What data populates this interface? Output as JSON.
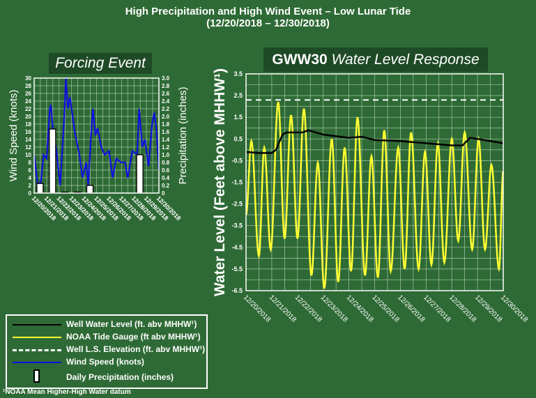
{
  "header": {
    "title_line1": "High Precipitation and High Wind Event – Low Lunar Tide",
    "title_line2": "(12/20/2018 – 12/30/2018)"
  },
  "left_panel": {
    "title": "Forcing Event"
  },
  "right_panel": {
    "title_bold": "GWW30",
    "title_italic": "Water Level Response"
  },
  "legend": {
    "items": [
      {
        "label": "Well Water Level (ft. abv MHHW¹)",
        "color": "#000000",
        "style": "solid"
      },
      {
        "label": "NOAA  Tide Gauge (ft abv MHHW¹)",
        "color": "#ffff33",
        "style": "solid"
      },
      {
        "label": "Well L.S. Elevation (ft. abv MHHW¹)",
        "color": "#ffffff",
        "style": "dashed"
      },
      {
        "label": "Wind  Speed (knots)",
        "color": "#1010e0",
        "style": "solid"
      },
      {
        "label": "Daily Precipitation (inches)",
        "color": "#ffffff",
        "style": "bar"
      }
    ]
  },
  "footnote": "¹NOAA  Mean Higher-High  Water datum",
  "colors": {
    "background": "#2e6a35",
    "title_box": "#1f4a26",
    "tide": "#ffff33",
    "well": "#000000",
    "wind": "#1010e0",
    "precip": "#ffffff"
  },
  "chart_data": [
    {
      "type": "line+bar",
      "title": "Forcing Event",
      "ylabel": "Wind Speed  (knots)",
      "y2label": "Precipitation  (inches)",
      "ylim": [
        0,
        30
      ],
      "y2lim": [
        0,
        3.0
      ],
      "yticks": [
        "0",
        "2",
        "4",
        "6",
        "8",
        "10",
        "12",
        "14",
        "16",
        "18",
        "20",
        "22",
        "24",
        "26",
        "28",
        "30"
      ],
      "y2ticks": [
        "0",
        "0.2",
        "0.4",
        "0.6",
        "0.8",
        "1.0",
        "1.2",
        "1.4",
        "1.6",
        "1.8",
        "2.0",
        "2.2",
        "2.4",
        "2.6",
        "2.8",
        "3.0"
      ],
      "xticks": [
        "12/20/2018",
        "12/21/2018",
        "12/22/2018",
        "12/23/2018",
        "12/24/2018",
        "12/25/2018",
        "12/26/2018",
        "12/27/2018",
        "12/28/2018",
        "12/29/2018",
        "12/30/2018"
      ],
      "grid": true,
      "wind_series": {
        "name": "Wind Speed (knots)",
        "points": [
          [
            "12/20 00",
            10
          ],
          [
            "12/20 07",
            2
          ],
          [
            "12/20 13",
            3
          ],
          [
            "12/20 18",
            10
          ],
          [
            "12/21 00",
            9
          ],
          [
            "12/21 06",
            22
          ],
          [
            "12/21 08",
            23
          ],
          [
            "12/21 12",
            17
          ],
          [
            "12/21 18",
            12
          ],
          [
            "12/22 02",
            2
          ],
          [
            "12/22 10",
            20
          ],
          [
            "12/22 13",
            30
          ],
          [
            "12/22 17",
            22
          ],
          [
            "12/22 21",
            25
          ],
          [
            "12/23 01",
            21
          ],
          [
            "12/23 06",
            16
          ],
          [
            "12/23 15",
            10
          ],
          [
            "12/23 21",
            4
          ],
          [
            "12/24 04",
            8
          ],
          [
            "12/24 08",
            2
          ],
          [
            "12/24 13",
            14
          ],
          [
            "12/24 17",
            22
          ],
          [
            "12/24 22",
            15
          ],
          [
            "12/25 02",
            17
          ],
          [
            "12/25 09",
            12
          ],
          [
            "12/25 16",
            10
          ],
          [
            "12/26 00",
            11
          ],
          [
            "12/26 07",
            4
          ],
          [
            "12/26 14",
            9
          ],
          [
            "12/26 23",
            8
          ],
          [
            "12/27 07",
            8
          ],
          [
            "12/27 12",
            4
          ],
          [
            "12/27 21",
            11
          ],
          [
            "12/28 06",
            10
          ],
          [
            "12/28 10",
            22
          ],
          [
            "12/28 16",
            12
          ],
          [
            "12/28 21",
            14
          ],
          [
            "12/29 04",
            7
          ],
          [
            "12/29 11",
            18
          ],
          [
            "12/29 15",
            21
          ],
          [
            "12/29 19",
            17
          ],
          [
            "12/30 00",
            6
          ]
        ]
      },
      "precip_series": {
        "name": "Daily Precipitation (inches)",
        "days": [
          "12/20",
          "12/21",
          "12/22",
          "12/23",
          "12/24",
          "12/25",
          "12/26",
          "12/27",
          "12/28",
          "12/29"
        ],
        "values": [
          0.25,
          1.67,
          0.01,
          0.01,
          0.2,
          0,
          0,
          0,
          1.0,
          0
        ]
      }
    },
    {
      "type": "line",
      "title": "GWW30 Water Level Response",
      "ylabel": "Water Level (Feet above MHHW¹)",
      "ylim": [
        -6.5,
        3.5
      ],
      "yticks": [
        "3.5",
        "2.5",
        "1.5",
        "0.5",
        "-0.5",
        "-1.5",
        "-2.5",
        "-3.5",
        "-4.5",
        "-5.5",
        "-6.5"
      ],
      "xticks": [
        "12/20/2018",
        "12/21/2018",
        "12/22/2018",
        "12/23/2018",
        "12/24/2018",
        "12/25/2018",
        "12/26/2018",
        "12/27/2018",
        "12/28/2018",
        "12/29/2018",
        "12/30/2018"
      ],
      "grid": true,
      "well_ls_elevation": 2.3,
      "tide_extremes": [
        [
          "12/20 00",
          -3.0
        ],
        [
          "12/20 05",
          0.4
        ],
        [
          "12/20 12",
          -4.9
        ],
        [
          "12/20 17",
          0.1
        ],
        [
          "12/20 23",
          -4.6
        ],
        [
          "12/21 06",
          2.2
        ],
        [
          "12/21 12",
          -4.1
        ],
        [
          "12/21 18",
          1.6
        ],
        [
          "12/22 00",
          -4.1
        ],
        [
          "12/22 06",
          1.9
        ],
        [
          "12/22 13",
          -5.8
        ],
        [
          "12/22 19",
          -0.6
        ],
        [
          "12/23 01",
          -6.4
        ],
        [
          "12/23 08",
          0.5
        ],
        [
          "12/23 14",
          -6.1
        ],
        [
          "12/23 20",
          0.1
        ],
        [
          "12/24 02",
          -5.6
        ],
        [
          "12/24 08",
          1.5
        ],
        [
          "12/24 15",
          -5.8
        ],
        [
          "12/24 21",
          -0.3
        ],
        [
          "12/25 03",
          -5.9
        ],
        [
          "12/25 09",
          0.9
        ],
        [
          "12/25 15",
          -5.6
        ],
        [
          "12/25 22",
          0.1
        ],
        [
          "12/26 04",
          -5.5
        ],
        [
          "12/26 10",
          0.8
        ],
        [
          "12/26 17",
          -5.5
        ],
        [
          "12/26 23",
          -0.1
        ],
        [
          "12/27 05",
          -5.3
        ],
        [
          "12/27 11",
          0.3
        ],
        [
          "12/27 17",
          -5.2
        ],
        [
          "12/28 00",
          0.5
        ],
        [
          "12/28 06",
          -4.2
        ],
        [
          "12/28 12",
          0.8
        ],
        [
          "12/28 19",
          -4.6
        ],
        [
          "12/29 01",
          0.5
        ],
        [
          "12/29 07",
          -4.6
        ],
        [
          "12/29 13",
          -0.7
        ],
        [
          "12/29 20",
          -5.5
        ],
        [
          "12/30 00",
          -1.0
        ]
      ],
      "well_level": [
        [
          "12/20 00",
          -0.1
        ],
        [
          "12/20 12",
          -0.15
        ],
        [
          "12/21 00",
          -0.15
        ],
        [
          "12/21 04",
          0.0
        ],
        [
          "12/21 10",
          0.7
        ],
        [
          "12/21 14",
          0.8
        ],
        [
          "12/22 05",
          0.8
        ],
        [
          "12/22 10",
          0.9
        ],
        [
          "12/23 00",
          0.7
        ],
        [
          "12/24 00",
          0.55
        ],
        [
          "12/24 12",
          0.6
        ],
        [
          "12/25 00",
          0.45
        ],
        [
          "12/26 00",
          0.4
        ],
        [
          "12/27 00",
          0.3
        ],
        [
          "12/28 00",
          0.2
        ],
        [
          "12/28 10",
          0.2
        ],
        [
          "12/28 17",
          0.55
        ],
        [
          "12/29 00",
          0.5
        ],
        [
          "12/30 00",
          0.3
        ]
      ]
    }
  ]
}
